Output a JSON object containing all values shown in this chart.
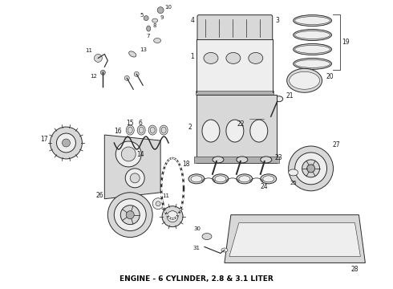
{
  "title": "ENGINE - 6 CYLINDER, 2.8 & 3.1 LITER",
  "background_color": "#ffffff",
  "fig_width": 4.9,
  "fig_height": 3.6,
  "dpi": 100,
  "ec": "#2a2a2a",
  "fc_white": "#ffffff",
  "fc_light": "#eeeeee",
  "fc_mid": "#d8d8d8",
  "fc_dark": "#b0b0b0",
  "lw": 0.7
}
